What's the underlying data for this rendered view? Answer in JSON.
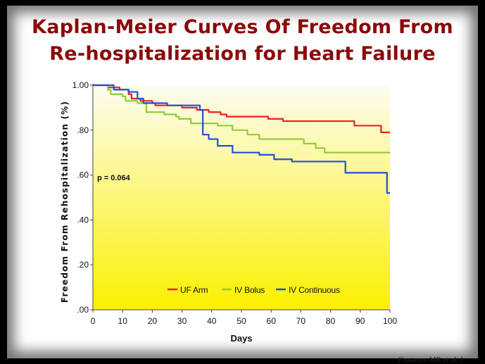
{
  "slide": {
    "title_line1": "Kaplan-Meier Curves Of Freedom From",
    "title_line2": "Re-hospitalization for Heart Failure",
    "citation": "Costanzo MR et al. J"
  },
  "colors": {
    "title": "#8b0a0a",
    "uf_arm": "#ee2020",
    "iv_bolus": "#90cc3a",
    "iv_continuous": "#1f4fd8",
    "plot_top": "#fcfcf2",
    "plot_bottom": "#fbf000"
  },
  "chart_data": {
    "type": "line",
    "step": true,
    "xlabel": "Days",
    "ylabel": "Freedom From Rehospitalization (%)",
    "xlim": [
      0,
      100
    ],
    "ylim": [
      0,
      1.0
    ],
    "x_ticks": [
      0,
      10,
      20,
      30,
      40,
      50,
      60,
      70,
      80,
      90,
      100
    ],
    "x_tick_labels": [
      "0",
      "10",
      "20",
      "30",
      "40",
      "50",
      "60",
      "70",
      "80",
      "90",
      "100"
    ],
    "y_ticks": [
      0,
      0.2,
      0.4,
      0.6,
      0.8,
      1.0
    ],
    "y_tick_labels": [
      ".00",
      ".20",
      ".40",
      ".60",
      ".80",
      "1.00"
    ],
    "annotation": "p = 0.064",
    "legend_placement": "bottom-center",
    "grid": false,
    "series": [
      {
        "name": "UF Arm",
        "color": "#ee2020",
        "points": [
          [
            0,
            1.0
          ],
          [
            5,
            0.99
          ],
          [
            9,
            0.98
          ],
          [
            12,
            0.96
          ],
          [
            13,
            0.94
          ],
          [
            16,
            0.93
          ],
          [
            20,
            0.92
          ],
          [
            21,
            0.91
          ],
          [
            30,
            0.9
          ],
          [
            35,
            0.89
          ],
          [
            39,
            0.88
          ],
          [
            43,
            0.87
          ],
          [
            45,
            0.86
          ],
          [
            59,
            0.85
          ],
          [
            64,
            0.84
          ],
          [
            88,
            0.82
          ],
          [
            97,
            0.79
          ],
          [
            100,
            0.79
          ]
        ]
      },
      {
        "name": "IV Bolus",
        "color": "#90cc3a",
        "points": [
          [
            0,
            1.0
          ],
          [
            5,
            0.98
          ],
          [
            6,
            0.96
          ],
          [
            10,
            0.95
          ],
          [
            11,
            0.93
          ],
          [
            15,
            0.92
          ],
          [
            18,
            0.88
          ],
          [
            24,
            0.87
          ],
          [
            28,
            0.86
          ],
          [
            29,
            0.85
          ],
          [
            33,
            0.83
          ],
          [
            42,
            0.82
          ],
          [
            47,
            0.8
          ],
          [
            52,
            0.78
          ],
          [
            56,
            0.76
          ],
          [
            71,
            0.74
          ],
          [
            75,
            0.72
          ],
          [
            78,
            0.7
          ],
          [
            100,
            0.7
          ]
        ]
      },
      {
        "name": "IV Continuous",
        "color": "#1f4fd8",
        "points": [
          [
            0,
            1.0
          ],
          [
            7,
            0.98
          ],
          [
            12,
            0.97
          ],
          [
            15,
            0.94
          ],
          [
            17,
            0.92
          ],
          [
            25,
            0.91
          ],
          [
            36,
            0.89
          ],
          [
            37,
            0.78
          ],
          [
            39,
            0.76
          ],
          [
            42,
            0.73
          ],
          [
            47,
            0.7
          ],
          [
            53,
            0.7
          ],
          [
            56,
            0.69
          ],
          [
            61,
            0.67
          ],
          [
            67,
            0.66
          ],
          [
            83,
            0.66
          ],
          [
            85,
            0.61
          ],
          [
            97,
            0.61
          ],
          [
            99,
            0.52
          ],
          [
            100,
            0.52
          ]
        ]
      }
    ]
  }
}
